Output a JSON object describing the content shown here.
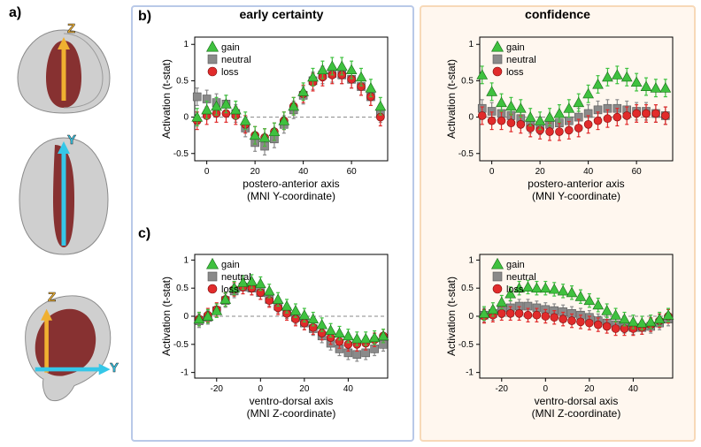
{
  "labels": {
    "a": "a)",
    "b": "b)",
    "c": "c)"
  },
  "titles": {
    "early": "early certainty",
    "conf": "confidence"
  },
  "axes": {
    "ylabel": "Activation (t-stat)",
    "xlabel_y": "postero-anterior axis",
    "xlabel_y2": "(MNI Y-coordinate)",
    "xlabel_z": "ventro-dorsal axis",
    "xlabel_z2": "(MNI Z-coordinate)"
  },
  "legend": {
    "gain": "gain",
    "neutral": "neutral",
    "loss": "loss"
  },
  "colors": {
    "gain": "#3fc13f",
    "neutral": "#8a8a8a",
    "loss": "#e12b2b",
    "frame_early": "#b9c9e8",
    "frame_conf": "#f7d9b8",
    "bg_conf": "#fff7ef",
    "grid": "#888888",
    "axis": "#000000",
    "brain_gray": "#bdbdbd",
    "brain_dark": "#6b6b6b",
    "brain_roi": "#7a1515",
    "arrow_z": "#f0b030",
    "arrow_y": "#35c7e8"
  },
  "markers": {
    "gain": "triangle",
    "neutral": "square",
    "loss": "circle"
  },
  "charts": {
    "b_left": {
      "xlim": [
        -5,
        75
      ],
      "xticks": [
        0,
        20,
        40,
        60
      ],
      "ylim": [
        -0.6,
        1.1
      ],
      "yticks": [
        -0.5,
        0,
        0.5,
        1
      ],
      "x": [
        -4,
        0,
        4,
        8,
        12,
        16,
        20,
        24,
        28,
        32,
        36,
        40,
        44,
        48,
        52,
        56,
        60,
        64,
        68,
        72
      ],
      "gain": [
        0.0,
        0.1,
        0.15,
        0.18,
        0.1,
        -0.05,
        -0.25,
        -0.28,
        -0.2,
        -0.05,
        0.15,
        0.35,
        0.55,
        0.65,
        0.7,
        0.7,
        0.65,
        0.55,
        0.4,
        0.15
      ],
      "neutral": [
        0.28,
        0.25,
        0.2,
        0.18,
        0.05,
        -0.15,
        -0.35,
        -0.4,
        -0.3,
        -0.1,
        0.1,
        0.3,
        0.5,
        0.58,
        0.6,
        0.58,
        0.52,
        0.42,
        0.28,
        0.05
      ],
      "loss": [
        -0.05,
        0.02,
        0.05,
        0.05,
        0.02,
        -0.1,
        -0.25,
        -0.28,
        -0.2,
        -0.05,
        0.15,
        0.32,
        0.48,
        0.55,
        0.58,
        0.58,
        0.52,
        0.42,
        0.28,
        0.0
      ],
      "err": 0.12
    },
    "b_right": {
      "xlim": [
        -5,
        75
      ],
      "xticks": [
        0,
        20,
        40,
        60
      ],
      "ylim": [
        -0.6,
        1.1
      ],
      "yticks": [
        -0.5,
        0,
        0.5,
        1
      ],
      "x": [
        -4,
        0,
        4,
        8,
        12,
        16,
        20,
        24,
        28,
        32,
        36,
        40,
        44,
        48,
        52,
        56,
        60,
        64,
        68,
        72
      ],
      "gain": [
        0.58,
        0.35,
        0.2,
        0.15,
        0.12,
        0.0,
        -0.05,
        0.0,
        0.05,
        0.12,
        0.2,
        0.32,
        0.45,
        0.55,
        0.58,
        0.55,
        0.48,
        0.42,
        0.4,
        0.4
      ],
      "neutral": [
        0.12,
        0.08,
        0.05,
        0.02,
        -0.02,
        -0.1,
        -0.12,
        -0.1,
        -0.08,
        -0.05,
        0.0,
        0.05,
        0.1,
        0.12,
        0.12,
        0.1,
        0.08,
        0.08,
        0.05,
        0.02
      ],
      "loss": [
        0.02,
        -0.05,
        -0.05,
        -0.08,
        -0.1,
        -0.15,
        -0.18,
        -0.2,
        -0.2,
        -0.18,
        -0.15,
        -0.1,
        -0.05,
        -0.02,
        0.0,
        0.02,
        0.05,
        0.05,
        0.05,
        0.02
      ],
      "err": 0.12
    },
    "c_left": {
      "xlim": [
        -30,
        58
      ],
      "xticks": [
        -20,
        0,
        20,
        40
      ],
      "ylim": [
        -1.1,
        1.1
      ],
      "yticks": [
        -1,
        -0.5,
        0,
        0.5,
        1
      ],
      "x": [
        -28,
        -24,
        -20,
        -16,
        -12,
        -8,
        -4,
        0,
        4,
        8,
        12,
        16,
        20,
        24,
        28,
        32,
        36,
        40,
        44,
        48,
        52,
        56
      ],
      "gain": [
        -0.05,
        0.0,
        0.1,
        0.3,
        0.5,
        0.6,
        0.62,
        0.58,
        0.45,
        0.3,
        0.18,
        0.1,
        0.02,
        -0.05,
        -0.15,
        -0.25,
        -0.3,
        -0.35,
        -0.4,
        -0.4,
        -0.38,
        -0.35
      ],
      "neutral": [
        -0.08,
        -0.02,
        0.1,
        0.28,
        0.45,
        0.52,
        0.5,
        0.42,
        0.3,
        0.18,
        0.08,
        -0.02,
        -0.12,
        -0.22,
        -0.35,
        -0.48,
        -0.58,
        -0.65,
        -0.68,
        -0.65,
        -0.58,
        -0.5
      ],
      "loss": [
        -0.05,
        0.02,
        0.12,
        0.3,
        0.48,
        0.52,
        0.5,
        0.42,
        0.28,
        0.15,
        0.05,
        -0.05,
        -0.12,
        -0.2,
        -0.3,
        -0.38,
        -0.45,
        -0.5,
        -0.5,
        -0.48,
        -0.42,
        -0.35
      ],
      "err": 0.12
    },
    "c_right": {
      "xlim": [
        -30,
        58
      ],
      "xticks": [
        -20,
        0,
        20,
        40
      ],
      "ylim": [
        -1.1,
        1.1
      ],
      "yticks": [
        -1,
        -0.5,
        0,
        0.5,
        1
      ],
      "x": [
        -28,
        -24,
        -20,
        -16,
        -12,
        -8,
        -4,
        0,
        4,
        8,
        12,
        16,
        20,
        24,
        28,
        32,
        36,
        40,
        44,
        48,
        52,
        56
      ],
      "gain": [
        0.05,
        0.12,
        0.25,
        0.4,
        0.5,
        0.52,
        0.5,
        0.5,
        0.48,
        0.45,
        0.42,
        0.35,
        0.28,
        0.2,
        0.1,
        0.02,
        -0.05,
        -0.1,
        -0.12,
        -0.1,
        -0.05,
        0.02
      ],
      "neutral": [
        0.02,
        0.05,
        0.1,
        0.15,
        0.18,
        0.18,
        0.15,
        0.12,
        0.1,
        0.08,
        0.05,
        0.02,
        -0.02,
        -0.08,
        -0.12,
        -0.15,
        -0.18,
        -0.2,
        -0.2,
        -0.18,
        -0.12,
        -0.05
      ],
      "loss": [
        0.0,
        0.02,
        0.05,
        0.05,
        0.05,
        0.02,
        0.02,
        0.0,
        -0.02,
        -0.05,
        -0.08,
        -0.1,
        -0.12,
        -0.15,
        -0.18,
        -0.22,
        -0.22,
        -0.22,
        -0.2,
        -0.15,
        -0.08,
        0.0
      ],
      "err": 0.12
    }
  }
}
